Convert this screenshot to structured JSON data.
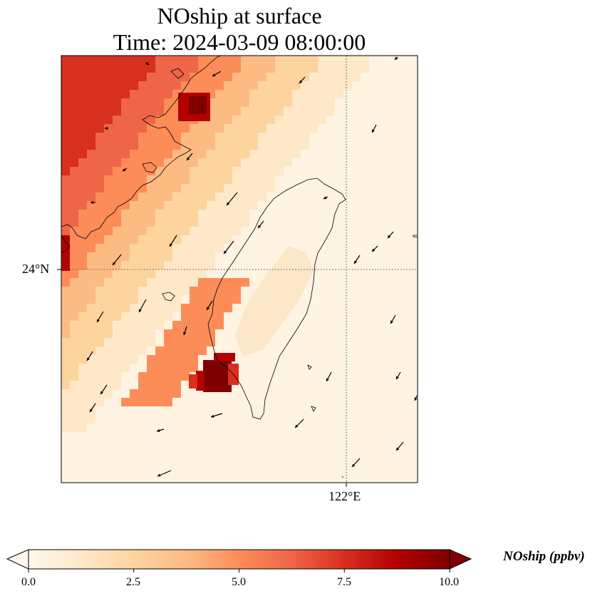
{
  "title": {
    "line1": "NOship at surface",
    "line2": "Time: 2024-03-09 08:00:00"
  },
  "map": {
    "lat_label": "24°N",
    "lon_label": "122°E",
    "colormap": "OrRd",
    "colors": {
      "c0": "#fff7ec",
      "c1": "#fee8c8",
      "c2": "#fdd49e",
      "c3": "#fdbb84",
      "c4": "#fc8d59",
      "c5": "#ef6548",
      "c6": "#d7301f",
      "c7": "#b30000",
      "c8": "#7f0000"
    },
    "coastline_color": "#000000",
    "wind_vector_color": "#000000",
    "gridline_style": "dotted"
  },
  "colorbar": {
    "label": "NOship (ppbv)",
    "ticks": [
      "0.0",
      "2.5",
      "5.0",
      "7.5",
      "10.0"
    ],
    "min": 0,
    "max": 10,
    "extend": "both"
  }
}
